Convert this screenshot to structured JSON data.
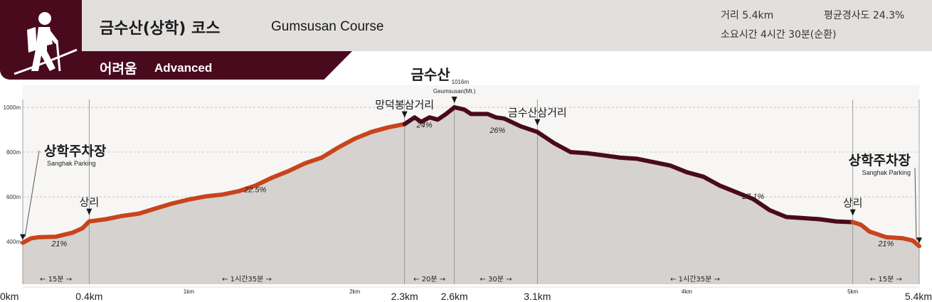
{
  "header": {
    "title_ko": "금수산(상학) 코스",
    "title_en": "Gumsusan Course",
    "difficulty_ko": "어려움",
    "difficulty_en": "Advanced",
    "distance": "거리 5.4km",
    "avg_slope": "평균경사도 24.3%",
    "duration": "소요시간 4시간 30분(순환)",
    "icon": "hiker-icon",
    "colors": {
      "brand": "#4a0a1e",
      "header_bg": "#e2e0de",
      "ascent": "#c8441c",
      "descent": "#4a0a1e",
      "fill": "#d6d2cf"
    }
  },
  "chart_data": {
    "type": "area",
    "title": "",
    "xlabel": "",
    "ylabel": "",
    "xlim": [
      0,
      5.4
    ],
    "ylim": [
      300,
      1060
    ],
    "y_ticks": [
      {
        "value": 400,
        "label": "400m"
      },
      {
        "value": 600,
        "label": "600m"
      },
      {
        "value": 800,
        "label": "800m"
      },
      {
        "value": 1000,
        "label": "1000m"
      }
    ],
    "x_ticks": [
      {
        "value": 0,
        "label": "0km",
        "size": "big"
      },
      {
        "value": 0.4,
        "label": "0.4km",
        "size": "big"
      },
      {
        "value": 1,
        "label": "1km",
        "size": "small"
      },
      {
        "value": 2,
        "label": "2km",
        "size": "small"
      },
      {
        "value": 2.3,
        "label": "2.3km",
        "size": "big"
      },
      {
        "value": 2.6,
        "label": "2.6km",
        "size": "big"
      },
      {
        "value": 3.1,
        "label": "3.1km",
        "size": "big"
      },
      {
        "value": 4,
        "label": "4km",
        "size": "small"
      },
      {
        "value": 5,
        "label": "5km",
        "size": "small"
      },
      {
        "value": 5.4,
        "label": "5.4km",
        "size": "big"
      }
    ],
    "series": [
      {
        "part": "ascent",
        "color": "#c8441c",
        "x": [
          0,
          0.05,
          0.1,
          0.2,
          0.3,
          0.36,
          0.4,
          0.5,
          0.6,
          0.7,
          0.8,
          0.9,
          1.0,
          1.1,
          1.2,
          1.3,
          1.4,
          1.5,
          1.6,
          1.7,
          1.8,
          1.9,
          2.0,
          2.1,
          2.2,
          2.3
        ],
        "y": [
          395,
          415,
          420,
          422,
          440,
          460,
          490,
          500,
          515,
          525,
          548,
          570,
          588,
          602,
          610,
          625,
          650,
          685,
          715,
          750,
          775,
          820,
          860,
          890,
          910,
          925
        ]
      },
      {
        "part": "summit",
        "color": "#4a0a1e",
        "x": [
          2.3,
          2.36,
          2.4,
          2.45,
          2.5,
          2.55,
          2.6,
          2.66,
          2.7,
          2.8,
          2.85,
          2.9,
          3.0,
          3.1
        ],
        "y": [
          925,
          955,
          935,
          955,
          945,
          970,
          1000,
          990,
          970,
          970,
          955,
          950,
          915,
          890
        ]
      },
      {
        "part": "descent",
        "color": "#4a0a1e",
        "x": [
          3.1,
          3.2,
          3.3,
          3.4,
          3.5,
          3.6,
          3.7,
          3.8,
          3.9,
          4.0,
          4.1,
          4.2,
          4.3,
          4.4,
          4.5,
          4.6,
          4.7,
          4.8,
          4.9,
          5.0
        ],
        "y": [
          890,
          840,
          800,
          795,
          785,
          775,
          770,
          755,
          740,
          710,
          690,
          650,
          620,
          590,
          540,
          510,
          505,
          500,
          490,
          487
        ]
      },
      {
        "part": "return",
        "color": "#c8441c",
        "x": [
          5.0,
          5.05,
          5.1,
          5.2,
          5.3,
          5.36,
          5.4
        ],
        "y": [
          487,
          475,
          445,
          420,
          415,
          405,
          380
        ]
      }
    ],
    "guides": [
      0.4,
      2.3,
      2.6,
      3.1,
      5.0
    ],
    "places": [
      {
        "x": 0,
        "name": "상학주차장",
        "sub": "Sanghak Parking",
        "style": "big",
        "side": "left"
      },
      {
        "x": 0.4,
        "name": "상리",
        "sub": "",
        "style": "medium"
      },
      {
        "x": 2.3,
        "name": "망덕봉삼거리",
        "sub": "",
        "style": "medium"
      },
      {
        "x": 2.6,
        "name": "금수산",
        "sub": "Geumsusan(Mt.)",
        "elev": "1016m",
        "style": "peak"
      },
      {
        "x": 3.1,
        "name": "금수산삼거리",
        "sub": "",
        "style": "medium"
      },
      {
        "x": 5.0,
        "name": "상리",
        "sub": "",
        "style": "medium"
      },
      {
        "x": 5.4,
        "name": "상학주차장",
        "sub": "Sanghak Parking",
        "style": "big",
        "side": "right"
      }
    ],
    "slopes": [
      {
        "x": 0.22,
        "y": 380,
        "label": "21%"
      },
      {
        "x": 1.4,
        "y": 620,
        "label": "22.5%"
      },
      {
        "x": 2.42,
        "y": 910,
        "label": "24%"
      },
      {
        "x": 2.86,
        "y": 885,
        "label": "26%"
      },
      {
        "x": 4.4,
        "y": 590,
        "label": "27.1%"
      },
      {
        "x": 5.2,
        "y": 380,
        "label": "21%"
      }
    ],
    "durations": [
      {
        "x0": 0,
        "x1": 0.4,
        "label": "15분"
      },
      {
        "x0": 0.4,
        "x1": 2.3,
        "label": "1시간35분"
      },
      {
        "x0": 2.3,
        "x1": 2.6,
        "label": "20분"
      },
      {
        "x0": 2.6,
        "x1": 3.1,
        "label": "30분"
      },
      {
        "x0": 3.1,
        "x1": 5.0,
        "label": "1시간35분"
      },
      {
        "x0": 5.0,
        "x1": 5.4,
        "label": "15분"
      }
    ]
  }
}
